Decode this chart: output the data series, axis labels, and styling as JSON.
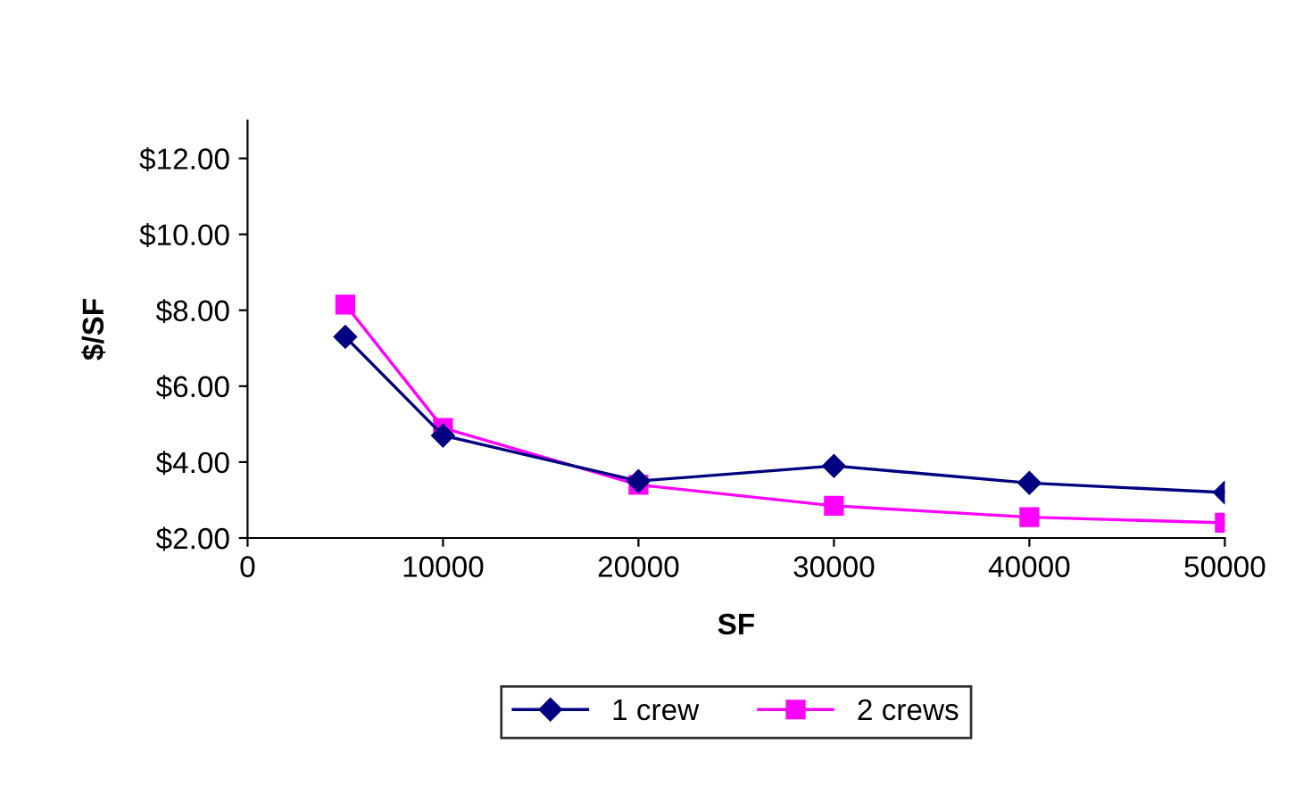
{
  "chart_data": {
    "type": "line",
    "xlabel": "SF",
    "ylabel": "$/SF",
    "x": [
      5000,
      10000,
      20000,
      30000,
      40000,
      50000
    ],
    "series": [
      {
        "name": "1 crew",
        "color": "#000080",
        "marker": "diamond",
        "values": [
          7.3,
          4.7,
          3.5,
          3.9,
          3.45,
          3.2
        ]
      },
      {
        "name": "2 crews",
        "color": "#ff00ff",
        "marker": "square",
        "values": [
          8.15,
          4.9,
          3.4,
          2.85,
          2.55,
          2.4
        ]
      }
    ],
    "xlim": [
      0,
      50000
    ],
    "xticks": [
      0,
      10000,
      20000,
      30000,
      40000,
      50000
    ],
    "ylim": [
      2,
      13
    ],
    "yticks": [
      {
        "value": 2,
        "label": "$2.00"
      },
      {
        "value": 4,
        "label": "$4.00"
      },
      {
        "value": 6,
        "label": "$6.00"
      },
      {
        "value": 8,
        "label": "$8.00"
      },
      {
        "value": 10,
        "label": "$10.00"
      },
      {
        "value": 12,
        "label": "$12.00"
      }
    ],
    "grid": false,
    "legend": "bottom"
  }
}
